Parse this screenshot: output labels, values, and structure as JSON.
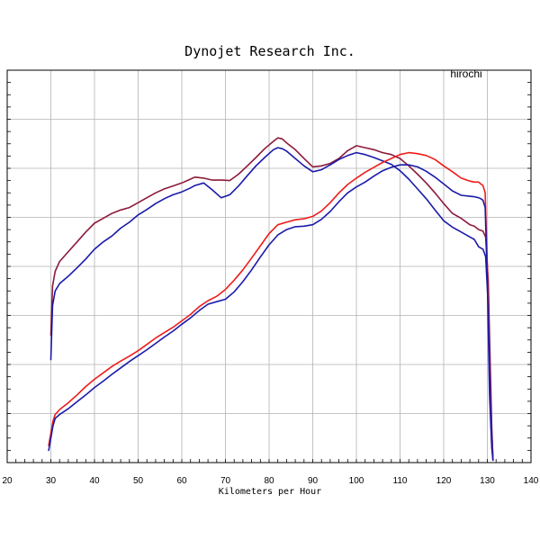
{
  "chart_data": {
    "type": "line",
    "title": "Dynojet  Research  Inc.",
    "watermark": "hirochi",
    "xlabel": "Kilometers per Hour",
    "ylabel": "",
    "xlim": [
      20,
      140
    ],
    "ylim": [
      0,
      8
    ],
    "xticks": [
      20,
      30,
      40,
      50,
      60,
      70,
      80,
      90,
      100,
      110,
      120,
      130,
      140
    ],
    "grid": true,
    "series": [
      {
        "color": "#8b1a3a",
        "x": [
          30,
          30.4,
          31,
          32,
          34,
          36,
          38,
          40,
          42,
          44,
          46,
          48,
          50,
          52,
          54,
          56,
          58,
          60,
          62,
          63,
          65,
          67,
          69,
          71,
          73,
          75,
          77,
          79,
          81,
          82,
          83,
          84,
          86,
          88,
          90,
          92,
          94,
          96,
          98,
          100,
          102,
          104,
          106,
          108,
          110,
          112,
          114,
          116,
          118,
          120,
          122,
          124,
          126,
          127,
          128,
          129,
          129.6,
          130.2,
          130.6,
          131,
          131.3
        ],
        "y": [
          2.6,
          3.6,
          3.9,
          4.1,
          4.3,
          4.5,
          4.7,
          4.88,
          4.98,
          5.08,
          5.15,
          5.2,
          5.3,
          5.4,
          5.5,
          5.58,
          5.64,
          5.7,
          5.78,
          5.82,
          5.8,
          5.76,
          5.76,
          5.75,
          5.88,
          6.05,
          6.22,
          6.4,
          6.55,
          6.62,
          6.6,
          6.52,
          6.38,
          6.2,
          6.03,
          6.05,
          6.1,
          6.2,
          6.36,
          6.46,
          6.42,
          6.38,
          6.32,
          6.28,
          6.2,
          6.05,
          5.88,
          5.7,
          5.5,
          5.28,
          5.08,
          4.98,
          4.85,
          4.82,
          4.75,
          4.72,
          4.6,
          3.7,
          2.2,
          0.7,
          0.05
        ]
      },
      {
        "color": "#1a1aaa",
        "x": [
          30,
          30.4,
          31,
          32,
          34,
          36,
          38,
          40,
          42,
          44,
          46,
          48,
          50,
          52,
          54,
          56,
          58,
          60,
          62,
          63,
          65,
          67,
          69,
          71,
          73,
          75,
          77,
          79,
          81,
          82,
          83,
          84,
          86,
          88,
          90,
          92,
          94,
          96,
          98,
          100,
          102,
          104,
          106,
          108,
          110,
          112,
          114,
          116,
          118,
          120,
          122,
          124,
          126,
          127,
          128,
          129,
          129.6,
          130.2,
          130.6,
          131,
          131.3
        ],
        "y": [
          2.1,
          3.2,
          3.5,
          3.65,
          3.8,
          3.97,
          4.15,
          4.35,
          4.5,
          4.62,
          4.78,
          4.9,
          5.05,
          5.16,
          5.28,
          5.38,
          5.46,
          5.52,
          5.6,
          5.65,
          5.7,
          5.56,
          5.4,
          5.46,
          5.64,
          5.85,
          6.05,
          6.22,
          6.38,
          6.42,
          6.4,
          6.35,
          6.2,
          6.05,
          5.93,
          5.97,
          6.07,
          6.18,
          6.26,
          6.32,
          6.28,
          6.22,
          6.15,
          6.08,
          5.95,
          5.78,
          5.58,
          5.38,
          5.15,
          4.93,
          4.8,
          4.7,
          4.6,
          4.55,
          4.4,
          4.35,
          4.2,
          3.2,
          1.8,
          0.6,
          0.05
        ]
      },
      {
        "color": "#ee1c1c",
        "x": [
          29.5,
          30,
          30.5,
          31,
          32,
          34,
          36,
          38,
          40,
          42,
          44,
          46,
          48,
          50,
          52,
          54,
          56,
          58,
          60,
          62,
          64,
          66,
          68,
          70,
          72,
          74,
          76,
          78,
          80,
          82,
          84,
          86,
          88,
          90,
          92,
          94,
          96,
          98,
          100,
          102,
          104,
          106,
          108,
          110,
          112,
          114,
          116,
          118,
          120,
          122,
          124,
          126,
          127,
          128,
          128.5,
          129,
          129.5,
          130,
          130.5,
          131,
          131.3
        ],
        "y": [
          0.35,
          0.6,
          0.85,
          0.98,
          1.08,
          1.22,
          1.38,
          1.55,
          1.7,
          1.83,
          1.96,
          2.07,
          2.17,
          2.28,
          2.41,
          2.54,
          2.65,
          2.76,
          2.89,
          3.02,
          3.18,
          3.3,
          3.39,
          3.53,
          3.72,
          3.93,
          4.17,
          4.42,
          4.67,
          4.85,
          4.9,
          4.95,
          4.97,
          5.02,
          5.13,
          5.3,
          5.5,
          5.67,
          5.8,
          5.92,
          6.02,
          6.12,
          6.2,
          6.28,
          6.32,
          6.3,
          6.26,
          6.18,
          6.05,
          5.93,
          5.8,
          5.74,
          5.72,
          5.72,
          5.68,
          5.65,
          5.5,
          4.0,
          1.6,
          0.35,
          0.05
        ]
      },
      {
        "color": "#1a1aaa",
        "x": [
          29.5,
          30,
          30.5,
          31,
          32,
          34,
          36,
          38,
          40,
          42,
          44,
          46,
          48,
          50,
          52,
          54,
          56,
          58,
          60,
          62,
          64,
          66,
          68,
          70,
          72,
          74,
          76,
          78,
          80,
          82,
          84,
          86,
          88,
          90,
          92,
          94,
          96,
          98,
          100,
          102,
          104,
          106,
          108,
          110,
          112,
          114,
          116,
          118,
          120,
          122,
          124,
          126,
          127,
          128,
          128.5,
          129,
          129.5,
          130,
          130.5,
          131,
          131.3
        ],
        "y": [
          0.25,
          0.5,
          0.75,
          0.9,
          0.98,
          1.1,
          1.24,
          1.38,
          1.53,
          1.66,
          1.8,
          1.93,
          2.06,
          2.18,
          2.3,
          2.43,
          2.56,
          2.68,
          2.82,
          2.95,
          3.1,
          3.23,
          3.28,
          3.33,
          3.48,
          3.69,
          3.93,
          4.19,
          4.44,
          4.64,
          4.75,
          4.81,
          4.82,
          4.85,
          4.96,
          5.12,
          5.32,
          5.5,
          5.62,
          5.72,
          5.84,
          5.95,
          6.02,
          6.07,
          6.07,
          6.03,
          5.94,
          5.82,
          5.68,
          5.54,
          5.45,
          5.43,
          5.42,
          5.4,
          5.38,
          5.35,
          5.2,
          3.7,
          1.4,
          0.3,
          0.05
        ]
      }
    ]
  }
}
